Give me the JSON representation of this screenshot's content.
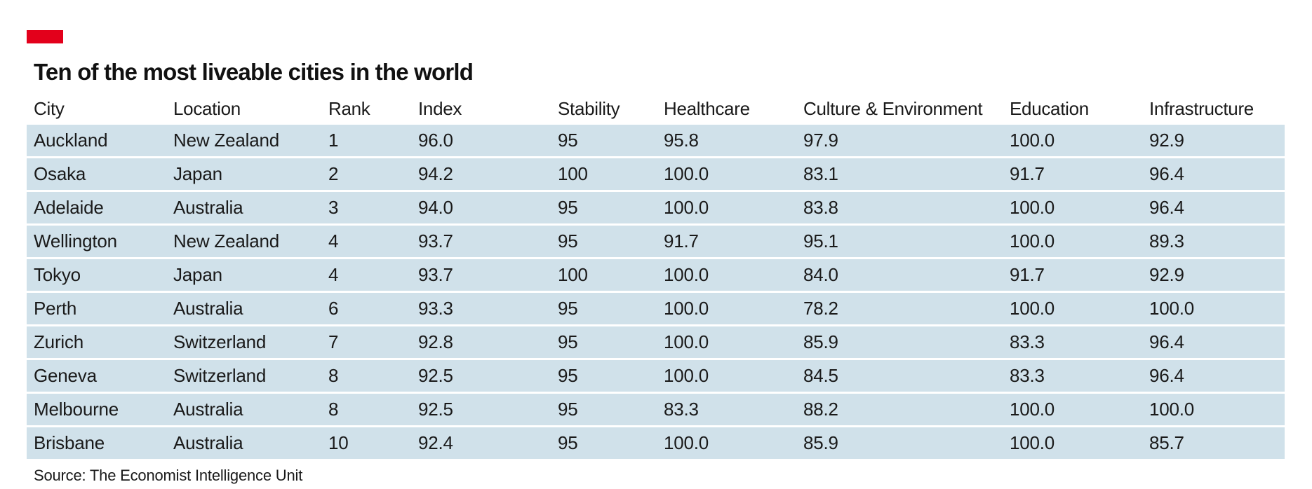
{
  "colors": {
    "accent": "#e3001b",
    "row_fill": "#d0e1ea",
    "row_separator": "#ffffff",
    "text": "#1a1a1a"
  },
  "chart_data": {
    "type": "table",
    "title": "Ten of the most liveable cities in the world",
    "columns": [
      "City",
      "Location",
      "Rank",
      "Index",
      "Stability",
      "Healthcare",
      "Culture & Environment",
      "Education",
      "Infrastructure"
    ],
    "rows": [
      [
        "Auckland",
        "New Zealand",
        "1",
        "96.0",
        "95",
        "95.8",
        "97.9",
        "100.0",
        "92.9"
      ],
      [
        "Osaka",
        "Japan",
        "2",
        "94.2",
        "100",
        "100.0",
        "83.1",
        "91.7",
        "96.4"
      ],
      [
        "Adelaide",
        "Australia",
        "3",
        "94.0",
        "95",
        "100.0",
        "83.8",
        "100.0",
        "96.4"
      ],
      [
        "Wellington",
        "New Zealand",
        "4",
        "93.7",
        "95",
        "91.7",
        "95.1",
        "100.0",
        "89.3"
      ],
      [
        "Tokyo",
        "Japan",
        "4",
        "93.7",
        "100",
        "100.0",
        "84.0",
        "91.7",
        "92.9"
      ],
      [
        "Perth",
        "Australia",
        "6",
        "93.3",
        "95",
        "100.0",
        "78.2",
        "100.0",
        "100.0"
      ],
      [
        "Zurich",
        "Switzerland",
        "7",
        "92.8",
        "95",
        "100.0",
        "85.9",
        "83.3",
        "96.4"
      ],
      [
        "Geneva",
        "Switzerland",
        "8",
        "92.5",
        "95",
        "100.0",
        "84.5",
        "83.3",
        "96.4"
      ],
      [
        "Melbourne",
        "Australia",
        "8",
        "92.5",
        "95",
        "83.3",
        "88.2",
        "100.0",
        "100.0"
      ],
      [
        "Brisbane",
        "Australia",
        "10",
        "92.4",
        "95",
        "100.0",
        "85.9",
        "100.0",
        "85.7"
      ]
    ],
    "source": "Source: The Economist Intelligence Unit"
  }
}
